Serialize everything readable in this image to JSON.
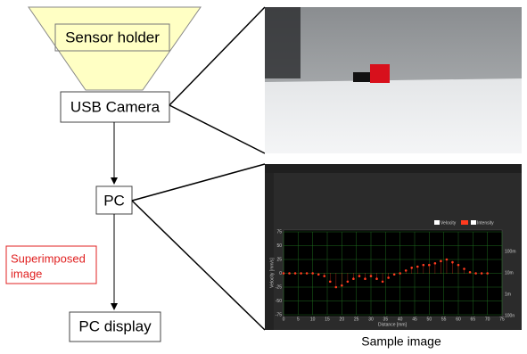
{
  "nodes": [
    {
      "label": "Sensor holder"
    },
    {
      "label": "USB Camera"
    },
    {
      "label": "PC"
    },
    {
      "label": "PC display"
    }
  ],
  "annotation": {
    "lines": [
      "Superimposed",
      "image"
    ]
  },
  "caption": "Sample image",
  "sample_image": {
    "chart": {
      "type": "scatter",
      "x_label": "Distance [mm]",
      "y_label": "Velocity [mm/s]",
      "legend": [
        "Velocity",
        "Intensity"
      ],
      "xlim": [
        0,
        75
      ],
      "xticks": [
        0,
        5,
        10,
        15,
        20,
        25,
        30,
        35,
        40,
        45,
        50,
        55,
        60,
        65,
        70,
        75
      ],
      "ylim": [
        -75,
        75
      ],
      "yticks": [
        75,
        50,
        25,
        0,
        -25,
        -50,
        -75
      ],
      "y2_tick_labels": [
        "100m",
        "10m",
        "1m",
        "100n"
      ],
      "color": "#ff3b1f",
      "x": [
        0,
        2,
        4,
        6,
        8,
        10,
        12,
        14,
        16,
        18,
        20,
        22,
        24,
        26,
        28,
        30,
        32,
        34,
        36,
        38,
        40,
        42,
        44,
        46,
        48,
        50,
        52,
        54,
        56,
        58,
        60,
        62,
        64,
        66,
        68,
        70
      ],
      "values": [
        0,
        0,
        0,
        0,
        0,
        0,
        -2,
        -5,
        -15,
        -25,
        -22,
        -15,
        -10,
        -5,
        -10,
        -5,
        -10,
        -15,
        -8,
        -2,
        0,
        5,
        10,
        12,
        15,
        15,
        18,
        22,
        25,
        20,
        15,
        8,
        2,
        0,
        0,
        0
      ]
    }
  }
}
